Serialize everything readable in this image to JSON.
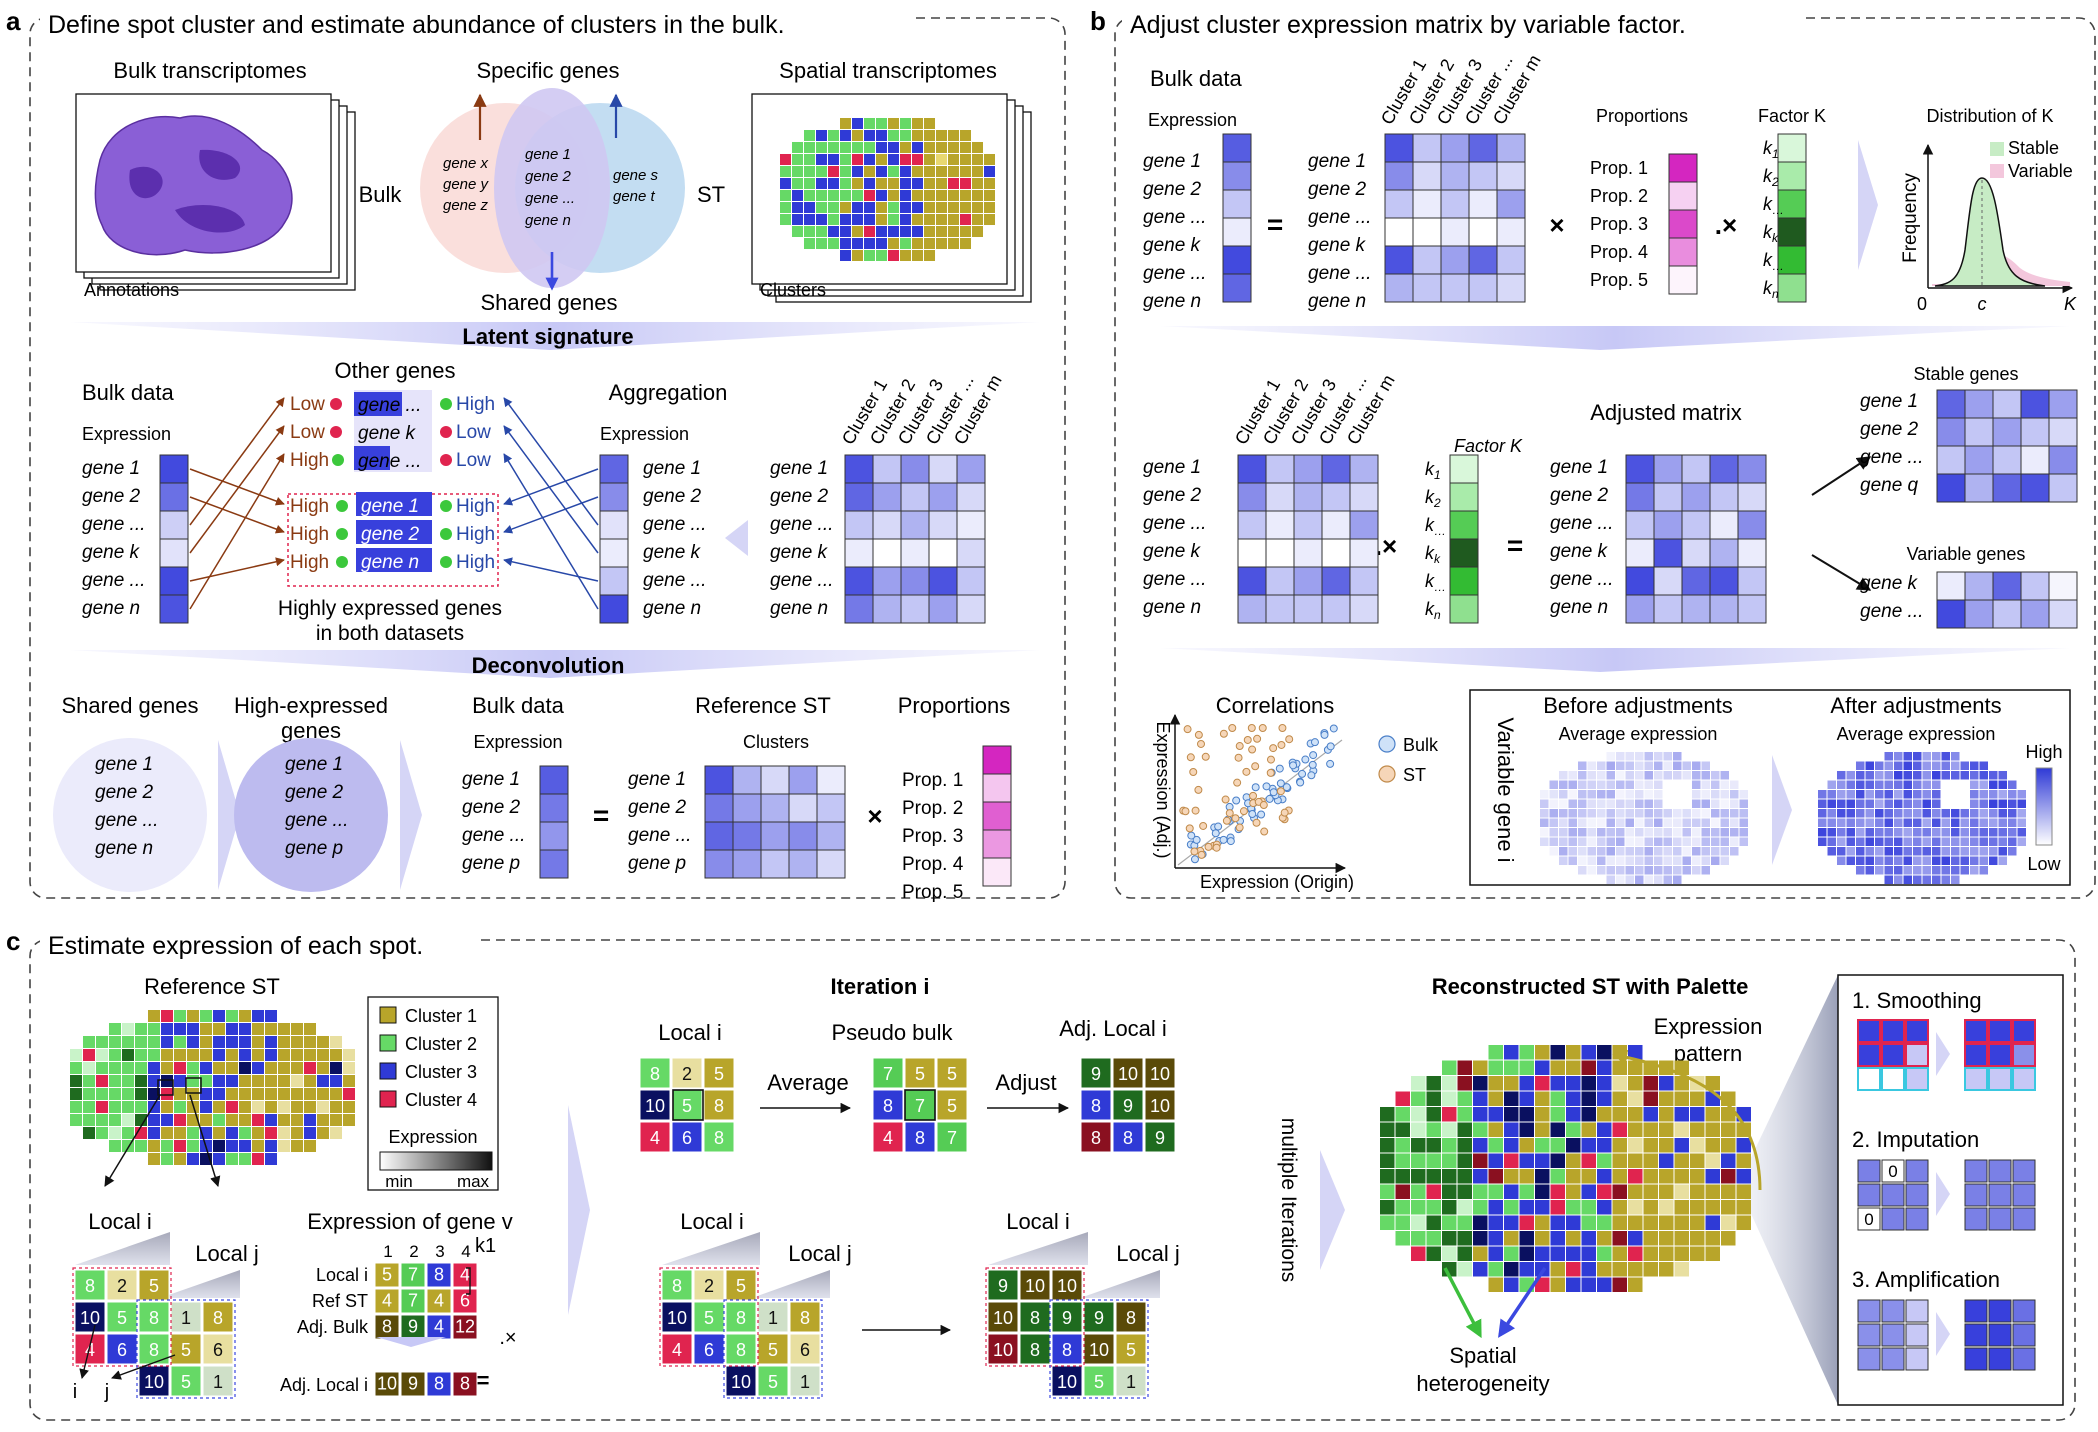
{
  "panel_a": {
    "letter": "a",
    "title": "Define spot cluster and estimate abundance of clusters in the bulk.",
    "bulk_transcriptomes": "Bulk transcriptomes",
    "specific_genes": "Specific genes",
    "spatial_transcriptomes": "Spatial transcriptomes",
    "annotations": "Annotations",
    "bulk": "Bulk",
    "st": "ST",
    "clusters": "Clusters",
    "shared_genes": "Shared genes",
    "venn_left": [
      "gene x",
      "gene y",
      "gene z"
    ],
    "venn_mid": [
      "gene 1",
      "gene 2",
      "gene ...",
      "gene n"
    ],
    "venn_right": [
      "gene s",
      "gene t"
    ],
    "latent_signature": "Latent signature",
    "bulk_data": "Bulk data",
    "expression": "Expression",
    "other_genes": "Other genes",
    "aggregation": "Aggregation",
    "gene_rows": [
      "gene 1",
      "gene 2",
      "gene ...",
      "gene k",
      "gene ...",
      "gene n"
    ],
    "cluster_cols": [
      "Cluster 1",
      "Cluster 2",
      "Cluster 3",
      "Cluster ...",
      "Cluster m"
    ],
    "low": "Low",
    "high": "High",
    "other_rows": [
      "gene ...",
      "gene k",
      "gene ..."
    ],
    "shared_rows": [
      "gene 1",
      "gene 2",
      "gene n"
    ],
    "highly_expressed": [
      "Highly expressed genes",
      "in both datasets"
    ],
    "deconvolution": "Deconvolution",
    "shared_genes_label": "Shared genes",
    "high_expressed_label": [
      "High-expressed",
      "genes"
    ],
    "shared_list": [
      "gene 1",
      "gene 2",
      "gene ...",
      "gene n"
    ],
    "high_list": [
      "gene 1",
      "gene 2",
      "gene ...",
      "gene p"
    ],
    "reference_st": "Reference ST",
    "proportions": "Proportions",
    "deconv_rows": [
      "gene 1",
      "gene 2",
      "gene ...",
      "gene p"
    ],
    "props": [
      "Prop. 1",
      "Prop. 2",
      "Prop. 3",
      "Prop. 4",
      "Prop. 5"
    ],
    "eq": "=",
    "times": "×"
  },
  "panel_b": {
    "letter": "b",
    "title": "Adjust cluster expression matrix by variable factor.",
    "bulk_data": "Bulk data",
    "expression": "Expression",
    "proportions": "Proportions",
    "factor_k": "Factor K",
    "distribution": "Distribution of K",
    "stable": "Stable",
    "variable": "Variable",
    "frequency": "Frequency",
    "axis_zero": "0",
    "axis_c": "c",
    "axis_k": "K",
    "gene_rows": [
      "gene 1",
      "gene 2",
      "gene ...",
      "gene k",
      "gene ...",
      "gene n"
    ],
    "cluster_cols": [
      "Cluster 1",
      "Cluster 2",
      "Cluster 3",
      "Cluster ...",
      "Cluster m"
    ],
    "props": [
      "Prop. 1",
      "Prop. 2",
      "Prop. 3",
      "Prop. 4",
      "Prop. 5"
    ],
    "k_labels": [
      "k1",
      "k2",
      "k...",
      "kk",
      "k...",
      "kn"
    ],
    "dot_times": ".×",
    "adjusted_matrix": "Adjusted matrix",
    "stable_genes": "Stable genes",
    "stable_rows": [
      "gene 1",
      "gene 2",
      "gene ...",
      "gene q"
    ],
    "variable_genes": "Variable genes",
    "variable_rows": [
      "gene k",
      "gene ..."
    ],
    "correlations": "Correlations",
    "legend_bulk": "Bulk",
    "legend_st": "ST",
    "x_label": "Expression (Origin)",
    "y_label": "Expression (Adj.)",
    "variable_gene_i": "Variable gene i",
    "before": "Before adjustments",
    "after": "After adjustments",
    "avg_expr": "Average expression",
    "cb_high": "High",
    "cb_low": "Low"
  },
  "panel_c": {
    "letter": "c",
    "title": "Estimate expression of each spot.",
    "reference_st": "Reference ST",
    "legend": [
      "Cluster 1",
      "Cluster 2",
      "Cluster 3",
      "Cluster 4"
    ],
    "expression": "Expression",
    "min": "min",
    "max": "max",
    "local_i": "Local i",
    "local_j": "Local j",
    "i": "i",
    "j": "j",
    "expr_gene_v": "Expression of gene v",
    "col_nums": [
      "1",
      "2",
      "3",
      "4"
    ],
    "row_labels": [
      "Local i",
      "Ref ST",
      "Adj. Bulk"
    ],
    "k1": "k1",
    "dot_times": ".×",
    "adj_local_i": "Adj. Local i",
    "eq": "=",
    "iteration": "Iteration i",
    "pseudo_bulk": "Pseudo bulk",
    "adj_local": "Adj. Local i",
    "average": "Average",
    "adjust": "Adjust",
    "multiple_iterations": "multiple Iterations",
    "reconstructed": "Reconstructed ST with Palette",
    "expression_pattern": [
      "Expression",
      "pattern"
    ],
    "spatial": [
      "Spatial",
      "heterogeneity"
    ],
    "smoothing": "1. Smoothing",
    "imputation": "2. Imputation",
    "amplification": "3. Amplification",
    "zero": "0",
    "local_i_vals": [
      "8",
      "2",
      "5",
      "10",
      "5",
      "8",
      "4",
      "6",
      "8"
    ],
    "pseudo_vals": [
      "7",
      "5",
      "5",
      "8",
      "7",
      "5",
      "4",
      "8",
      "7"
    ],
    "adj_vals": [
      "9",
      "10",
      "10",
      "8",
      "9",
      "10",
      "8",
      "8",
      "9"
    ],
    "gene_v": {
      "local": [
        "5",
        "7",
        "8",
        "4"
      ],
      "ref": [
        "4",
        "7",
        "4",
        "6"
      ],
      "bulk": [
        "8",
        "9",
        "4",
        "12"
      ],
      "adj": [
        "10",
        "9",
        "8",
        "8"
      ]
    },
    "bl_left": [
      "8",
      "2",
      "5",
      "10",
      "5",
      "8",
      "4",
      "6",
      "8",
      "5",
      "1",
      "8",
      "6",
      "10",
      "5",
      "1"
    ],
    "bl_right": [
      "9",
      "10",
      "10",
      "10",
      "8",
      "9",
      "10",
      "8",
      "8",
      "9",
      "8",
      "10",
      "5",
      "1"
    ]
  },
  "colors": {
    "c1": "#b8a52a",
    "c2": "#66d966",
    "c3": "#2f3ad6",
    "c4": "#e0244f",
    "dark_green": "#1f6b1f",
    "navy": "#0a1060",
    "maroon": "#8a1020",
    "olive": "#5a4a08",
    "blue_strong": "#3840dc",
    "magenta": "#d21bbd",
    "arrow_red": "#8a3a12",
    "arrow_blue": "#2848a8"
  }
}
